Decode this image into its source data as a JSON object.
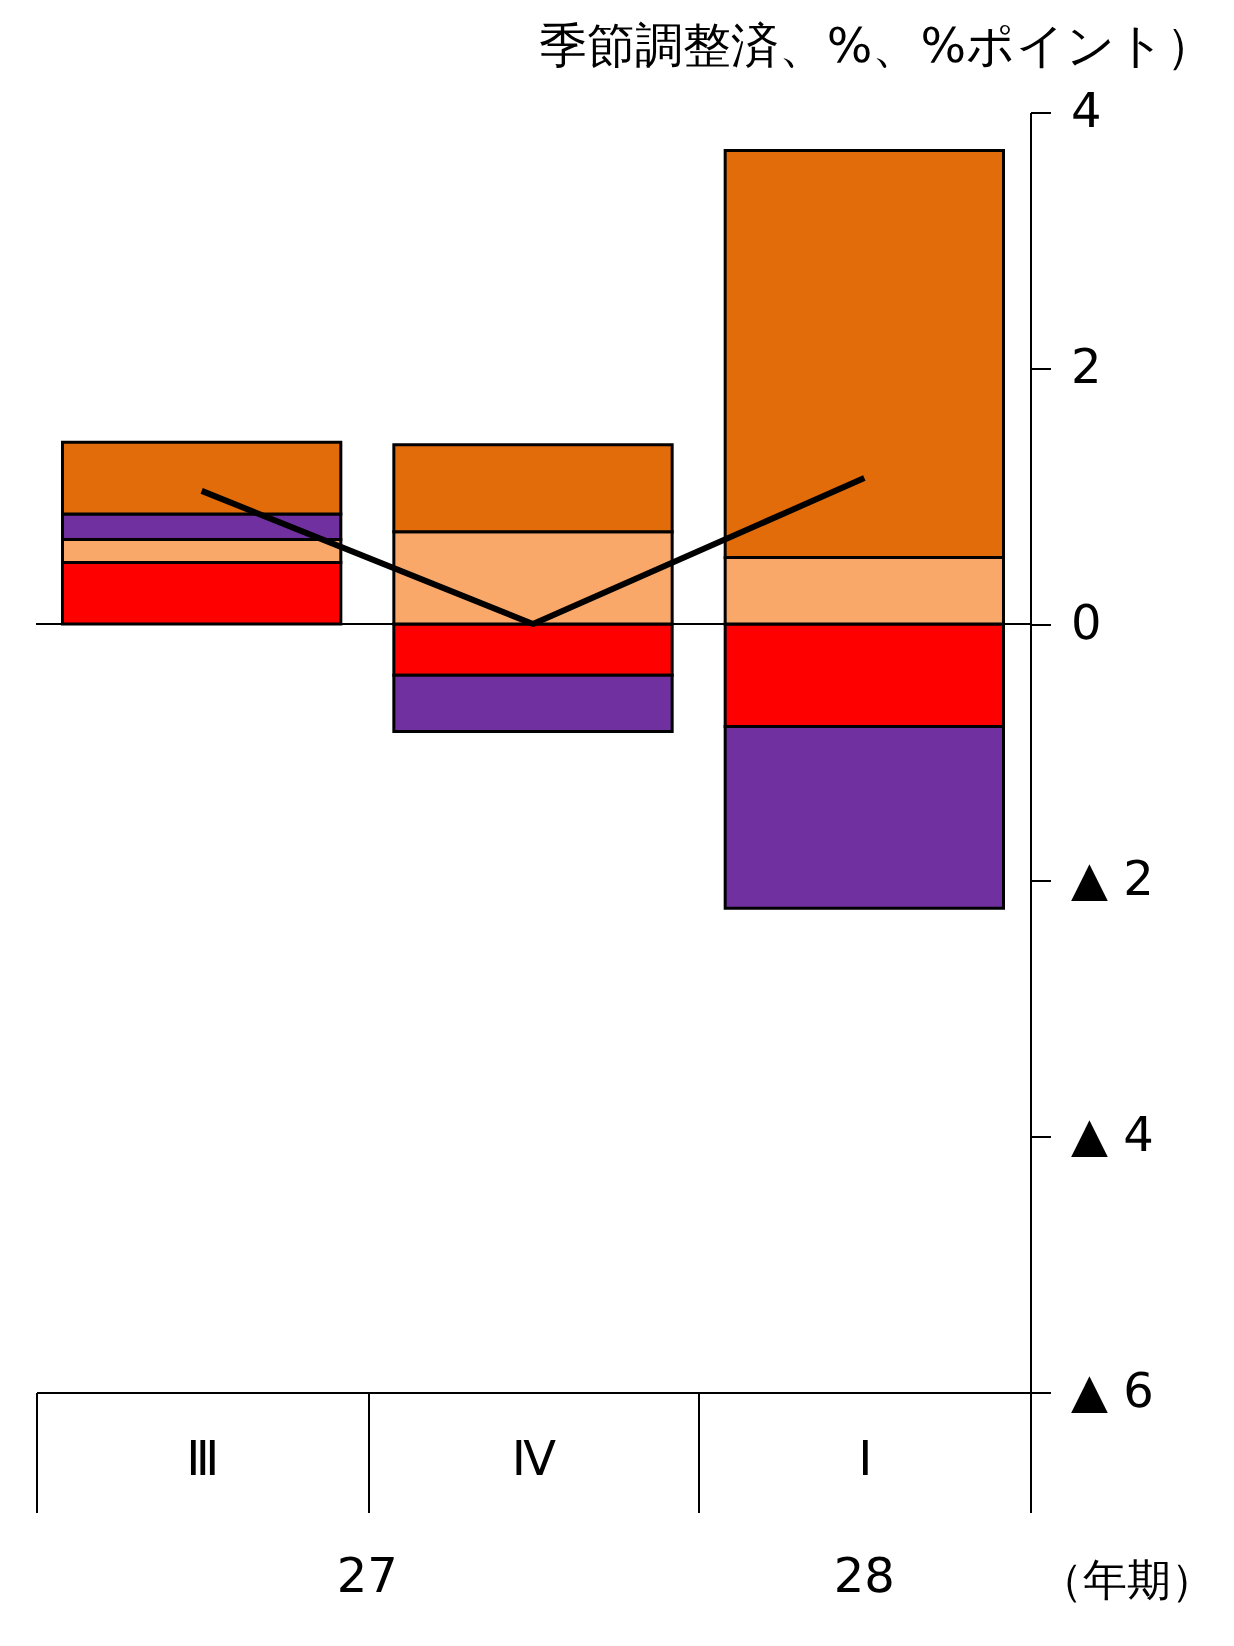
{
  "chart_data": {
    "type": "bar",
    "title": "季節調整済、%、%ポイント）",
    "xlabel": "（年期）",
    "categories": [
      "Ⅲ",
      "Ⅳ",
      "Ⅰ"
    ],
    "stacked": true,
    "series": [
      {
        "color": "#ff0000",
        "values": [
          0.48,
          -0.4,
          -0.8
        ]
      },
      {
        "color": "#f9a86a",
        "values": [
          0.18,
          0.72,
          0.52
        ]
      },
      {
        "color": "#7030a0",
        "values": [
          0.2,
          -0.44,
          -1.42
        ]
      },
      {
        "color": "#e36c0a",
        "values": [
          0.56,
          0.68,
          3.18
        ]
      },
      {
        "type": "line",
        "color": "#000000",
        "values": [
          1.04,
          0,
          1.14
        ]
      }
    ],
    "ylim": [
      -6,
      4
    ],
    "yticks": [
      4,
      2,
      0,
      {
        "value": -2,
        "label": "▲ 2"
      },
      {
        "value": -4,
        "label": "▲ 4"
      },
      {
        "value": -6,
        "label": "▲ 6"
      }
    ],
    "ref_lines": [
      {
        "axis": "y",
        "value": 0,
        "color": "#000000"
      }
    ],
    "annotations": [
      "27",
      "28"
    ],
    "grid": false,
    "legend": false,
    "marker": "none",
    "line_style": "solid"
  }
}
